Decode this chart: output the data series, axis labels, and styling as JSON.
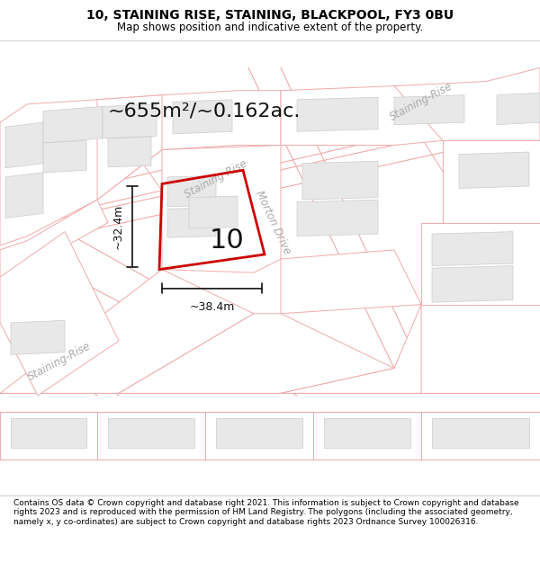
{
  "title": "10, STAINING RISE, STAINING, BLACKPOOL, FY3 0BU",
  "subtitle": "Map shows position and indicative extent of the property.",
  "footer": "Contains OS data © Crown copyright and database right 2021. This information is subject to Crown copyright and database rights 2023 and is reproduced with the permission of HM Land Registry. The polygons (including the associated geometry, namely x, y co-ordinates) are subject to Crown copyright and database rights 2023 Ordnance Survey 100026316.",
  "area_label": "~655m²/~0.162ac.",
  "number_label": "10",
  "width_label": "~38.4m",
  "height_label": "~32.4m",
  "bg_color": "#f5f5f5",
  "map_bg": "#ffffff",
  "lot_line_color": "#f0aaaa",
  "road_label_color": "#aaaaaa",
  "building_color": "#e8e8e8",
  "building_edge": "#cccccc",
  "highlight_color": "#cc0000",
  "highlight_lw": 2.0,
  "dim_line_color": "#111111",
  "text_color": "#111111",
  "title_fontsize": 10,
  "subtitle_fontsize": 8.5,
  "area_fontsize": 16,
  "number_fontsize": 22,
  "dim_fontsize": 9,
  "road_label_fontsize": 8.5,
  "footer_fontsize": 6.5
}
